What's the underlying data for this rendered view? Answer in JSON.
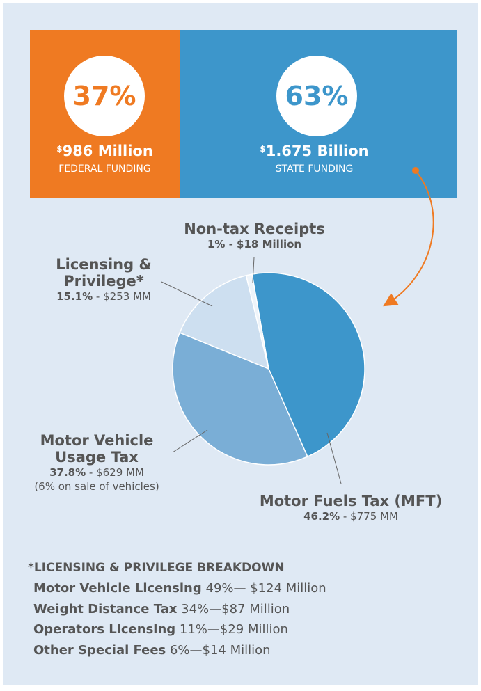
{
  "header": {
    "federal": {
      "percent": "37%",
      "symbol": "$",
      "amount": "986 Million",
      "label": "FEDERAL FUNDING"
    },
    "state": {
      "percent": "63%",
      "symbol": "$",
      "amount": "1.675 Billion",
      "label": "STATE FUNDING"
    }
  },
  "chart_data": {
    "type": "pie",
    "categories": [
      "Motor Fuels Tax (MFT)",
      "Motor Vehicle Usage Tax",
      "Licensing & Privilege*",
      "Non-tax Receipts"
    ],
    "values": [
      46.2,
      37.8,
      15.1,
      1
    ],
    "value_labels": [
      "46.2%",
      "37.8%",
      "15.1%",
      "1%"
    ],
    "amounts": [
      " - $775 MM",
      " - $629 MM",
      " - $253 MM",
      " - $18 Million"
    ],
    "colors": [
      "#3d96cb",
      "#7aaed6",
      "#cddff0",
      "#eef4fa"
    ],
    "note": "(6% on sale of vehicles)"
  },
  "breakdown": {
    "title": "*LICENSING & PRIVILEGE BREAKDOWN",
    "rows": [
      {
        "name": "Motor Vehicle Licensing",
        "detail": " 49%— $124 Million"
      },
      {
        "name": "Weight Distance Tax",
        "detail": " 34%—$87 Million"
      },
      {
        "name": "Operators Licensing",
        "detail": " 11%—$29 Million"
      },
      {
        "name": "Other Special Fees",
        "detail": " 6%—$14 Million"
      }
    ]
  }
}
